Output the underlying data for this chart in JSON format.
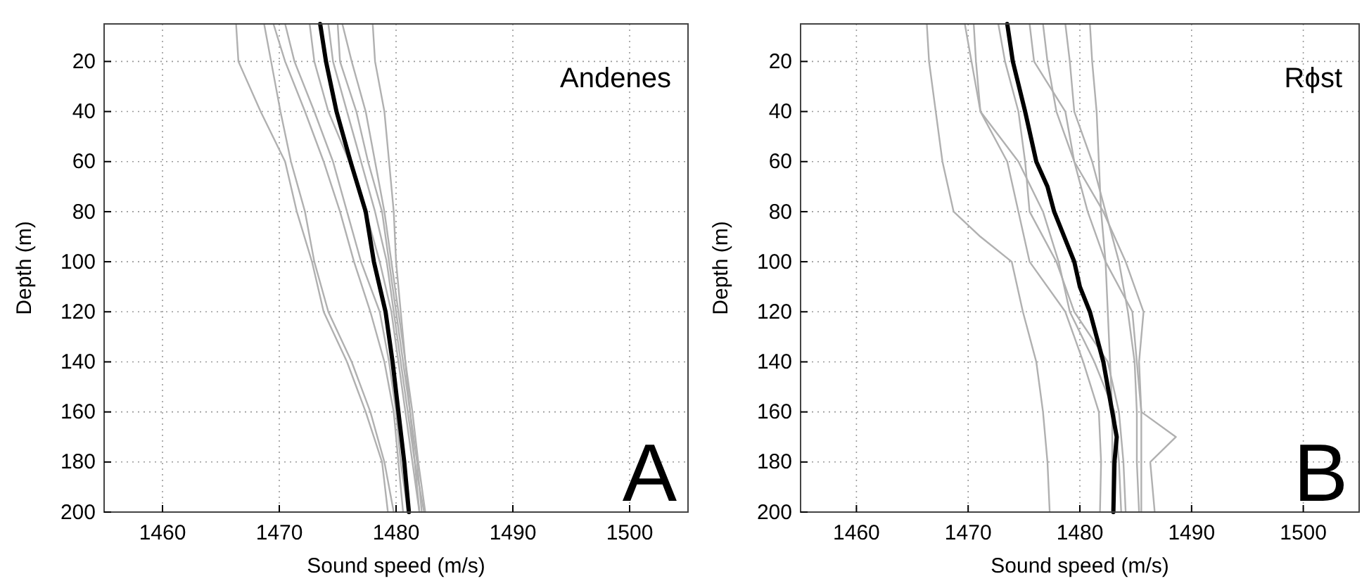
{
  "chart_data": [
    {
      "type": "line",
      "xlabel": "Sound speed (m/s)",
      "ylabel": "Depth (m)",
      "annotations": [
        "Andenes",
        "A"
      ],
      "xlim": [
        1455,
        1505
      ],
      "xticks": [
        1460,
        1470,
        1480,
        1490,
        1500
      ],
      "ylim": [
        200,
        5
      ],
      "yticks": [
        20,
        40,
        60,
        80,
        100,
        120,
        140,
        160,
        180,
        200
      ],
      "grid": true,
      "line_style": "solid",
      "series": [
        {
          "color": "#b0b0b0",
          "x": [
            1466.3,
            1466.5,
            1468.4,
            1470.5,
            1471.5,
            1472.8,
            1473.8,
            1475.8,
            1477.4,
            1478.8,
            1479.3
          ],
          "values": [
            5,
            20,
            40,
            60,
            80,
            100,
            120,
            140,
            160,
            180,
            200
          ]
        },
        {
          "color": "#b0b0b0",
          "x": [
            1468.7,
            1469.3,
            1470.1,
            1471,
            1472.2,
            1473,
            1474.2,
            1476.2,
            1477.8,
            1479,
            1479.8
          ],
          "values": [
            5,
            20,
            40,
            60,
            80,
            100,
            120,
            140,
            160,
            180,
            200
          ]
        },
        {
          "color": "#b0b0b0",
          "x": [
            1469.5,
            1470.5,
            1472.2,
            1473.8,
            1475.2,
            1476.4,
            1477.8,
            1479,
            1479.8,
            1480.2,
            1480.6
          ],
          "values": [
            5,
            20,
            40,
            60,
            80,
            100,
            120,
            140,
            160,
            180,
            200
          ]
        },
        {
          "color": "#b0b0b0",
          "x": [
            1470.5,
            1471.3,
            1473,
            1474.6,
            1475.8,
            1477,
            1478.6,
            1479.4,
            1480,
            1480.4,
            1481
          ],
          "values": [
            5,
            20,
            40,
            60,
            80,
            100,
            120,
            140,
            160,
            180,
            200
          ]
        },
        {
          "color": "#b0b0b0",
          "x": [
            1472.6,
            1473,
            1474.2,
            1476,
            1477.4,
            1478.6,
            1479.6,
            1480.2,
            1480.8,
            1481.4,
            1482
          ],
          "values": [
            5,
            20,
            40,
            60,
            80,
            100,
            120,
            140,
            160,
            180,
            200
          ]
        },
        {
          "color": "#b0b0b0",
          "x": [
            1474.2,
            1474.6,
            1475.8,
            1477,
            1478.2,
            1479.2,
            1479.8,
            1480.4,
            1481,
            1481.6,
            1482.4
          ],
          "values": [
            5,
            20,
            40,
            60,
            80,
            100,
            120,
            140,
            160,
            180,
            200
          ]
        },
        {
          "color": "#b0b0b0",
          "x": [
            1475,
            1475.2,
            1476.6,
            1477.6,
            1478.8,
            1479.4,
            1480,
            1480.6,
            1481.2,
            1481.8,
            1482.2
          ],
          "values": [
            5,
            20,
            40,
            60,
            80,
            100,
            120,
            140,
            160,
            180,
            200
          ]
        },
        {
          "color": "#b0b0b0",
          "x": [
            1475.4,
            1476.2,
            1477.4,
            1478.2,
            1479,
            1479.6,
            1480.2,
            1480.8,
            1481.4,
            1481.9,
            1482.5
          ],
          "values": [
            5,
            20,
            40,
            60,
            80,
            100,
            120,
            140,
            160,
            180,
            200
          ]
        },
        {
          "color": "#b0b0b0",
          "x": [
            1478,
            1478.2,
            1479,
            1479.4,
            1479.8,
            1480,
            1480.4,
            1480.8,
            1481.2,
            1481.6,
            1482
          ],
          "values": [
            5,
            20,
            40,
            60,
            80,
            100,
            120,
            140,
            160,
            180,
            200
          ]
        },
        {
          "color": "#000000",
          "x": [
            1473.5,
            1474,
            1474.9,
            1476.1,
            1477.4,
            1478.1,
            1479.1,
            1479.7,
            1480.2,
            1480.7,
            1481.1
          ],
          "values": [
            5,
            20,
            40,
            60,
            80,
            100,
            120,
            140,
            160,
            180,
            200
          ]
        }
      ]
    },
    {
      "type": "line",
      "xlabel": "Sound speed (m/s)",
      "ylabel": "Depth (m)",
      "annotations": [
        "Rϕst",
        "B"
      ],
      "xlim": [
        1455,
        1505
      ],
      "xticks": [
        1460,
        1470,
        1480,
        1490,
        1500
      ],
      "ylim": [
        200,
        5
      ],
      "yticks": [
        20,
        40,
        60,
        80,
        100,
        120,
        140,
        160,
        180,
        200
      ],
      "grid": true,
      "line_style": "solid",
      "series": [
        {
          "color": "#b0b0b0",
          "x": [
            1466.3,
            1466.5,
            1467.1,
            1467.7,
            1468.7,
            1471.1,
            1473.9,
            1474.9,
            1476.1,
            1476.7,
            1477.1,
            1477.3
          ],
          "values": [
            5,
            20,
            40,
            60,
            80,
            90,
            100,
            120,
            140,
            160,
            180,
            200
          ]
        },
        {
          "color": "#b0b0b0",
          "x": [
            1469.7,
            1470.3,
            1471.1,
            1473.5,
            1474.5,
            1475.5,
            1478.7,
            1480.3,
            1481.7,
            1481.9,
            1481.8
          ],
          "values": [
            5,
            20,
            40,
            60,
            80,
            100,
            120,
            140,
            160,
            180,
            200
          ]
        },
        {
          "color": "#b0b0b0",
          "x": [
            1470.5,
            1470.7,
            1471.1,
            1474.5,
            1476.7,
            1478.1,
            1479.1,
            1481.3,
            1483.1,
            1483.5,
            1483.7
          ],
          "values": [
            5,
            20,
            40,
            60,
            80,
            100,
            120,
            140,
            160,
            180,
            200
          ]
        },
        {
          "color": "#b0b0b0",
          "x": [
            1472.7,
            1473.3,
            1474.5,
            1475.1,
            1475.5,
            1477.9,
            1479.5,
            1482.5,
            1483.5,
            1483.9,
            1484.1
          ],
          "values": [
            5,
            20,
            40,
            60,
            80,
            100,
            120,
            140,
            160,
            180,
            200
          ]
        },
        {
          "color": "#b0b0b0",
          "x": [
            1475.5,
            1475.9,
            1478.7,
            1479.5,
            1480.7,
            1482.3,
            1484.7,
            1485.1,
            1485.5,
            1488.6,
            1486.3,
            1486.7
          ],
          "values": [
            5,
            20,
            40,
            60,
            80,
            100,
            120,
            140,
            160,
            170,
            180,
            200
          ]
        },
        {
          "color": "#b0b0b0",
          "x": [
            1476.7,
            1477.1,
            1477.9,
            1479.5,
            1482.1,
            1484.1,
            1485.7,
            1485.3,
            1485.5,
            1485.5,
            1485.5
          ],
          "values": [
            5,
            20,
            40,
            60,
            80,
            100,
            120,
            140,
            160,
            180,
            200
          ]
        },
        {
          "color": "#b0b0b0",
          "x": [
            1478.7,
            1479.1,
            1479.5,
            1481.1,
            1482.3,
            1483.5,
            1484.3,
            1484.9,
            1485.1,
            1485.1,
            1485.3
          ],
          "values": [
            5,
            20,
            40,
            60,
            80,
            100,
            120,
            140,
            160,
            180,
            200
          ]
        },
        {
          "color": "#b0b0b0",
          "x": [
            1480.9,
            1481.1,
            1481.5,
            1481.7,
            1481.9,
            1482.3,
            1482.5,
            1482.7,
            1482.9,
            1482.9,
            1482.9
          ],
          "values": [
            5,
            20,
            40,
            60,
            80,
            100,
            120,
            140,
            160,
            180,
            200
          ]
        },
        {
          "color": "#000000",
          "x": [
            1473.5,
            1474,
            1475.1,
            1476.1,
            1477.1,
            1477.7,
            1479.5,
            1480,
            1480.9,
            1482.1,
            1482.9,
            1483.3,
            1483.1,
            1483
          ],
          "values": [
            5,
            20,
            40,
            60,
            70,
            80,
            100,
            110,
            120,
            140,
            160,
            170,
            180,
            200
          ]
        }
      ]
    }
  ]
}
